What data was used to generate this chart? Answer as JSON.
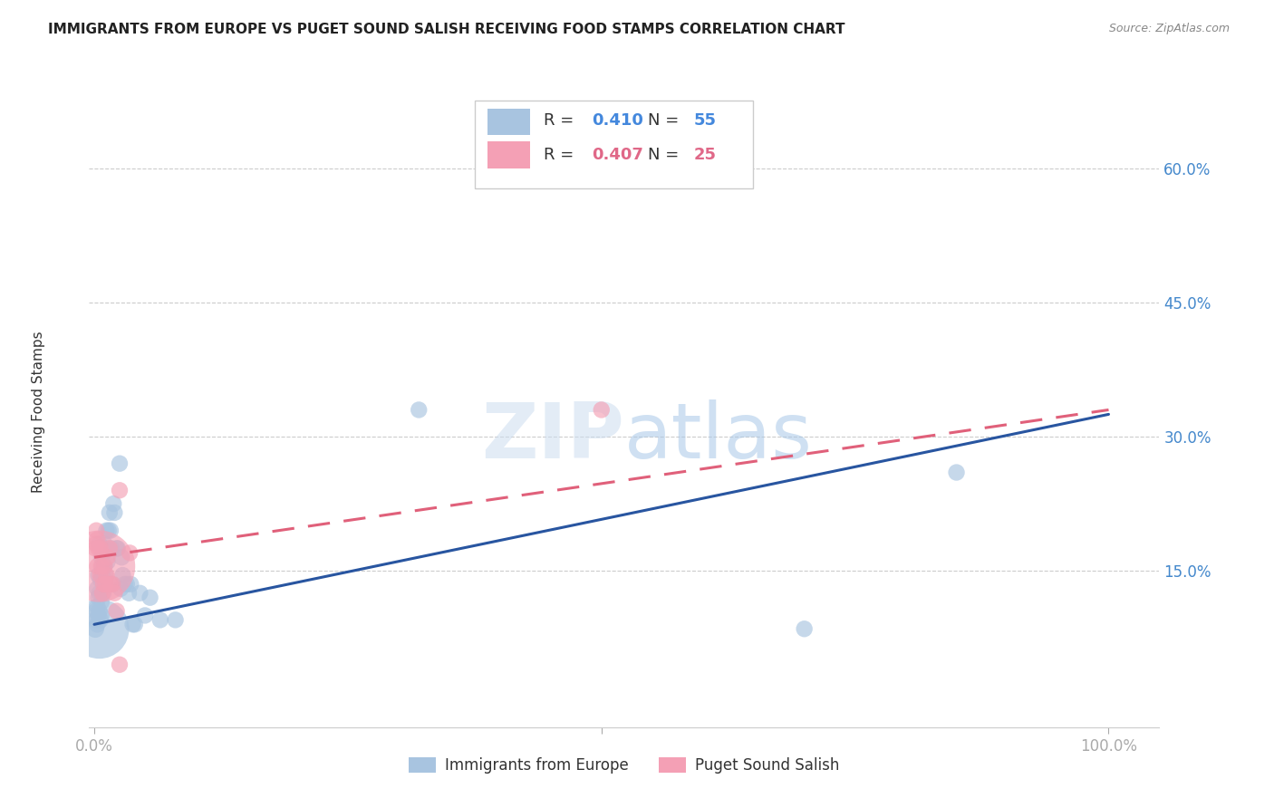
{
  "title": "IMMIGRANTS FROM EUROPE VS PUGET SOUND SALISH RECEIVING FOOD STAMPS CORRELATION CHART",
  "source": "Source: ZipAtlas.com",
  "ylabel": "Receiving Food Stamps",
  "ytick_labels": [
    "15.0%",
    "30.0%",
    "45.0%",
    "60.0%"
  ],
  "ytick_values": [
    0.15,
    0.3,
    0.45,
    0.6
  ],
  "xlim": [
    -0.005,
    1.05
  ],
  "ylim": [
    -0.025,
    0.68
  ],
  "blue_R": "0.410",
  "blue_N": "55",
  "pink_R": "0.407",
  "pink_N": "25",
  "blue_color": "#a8c4e0",
  "pink_color": "#f4a0b5",
  "blue_line_color": "#2855a0",
  "pink_line_color": "#e0607a",
  "legend_label_blue": "Immigrants from Europe",
  "legend_label_pink": "Puget Sound Salish",
  "blue_line_x0": 0.0,
  "blue_line_x1": 1.0,
  "blue_line_y0": 0.09,
  "blue_line_y1": 0.325,
  "pink_line_x0": 0.0,
  "pink_line_x1": 1.0,
  "pink_line_y0": 0.165,
  "pink_line_y1": 0.33,
  "blue_scatter_x": [
    0.001,
    0.002,
    0.002,
    0.003,
    0.003,
    0.003,
    0.004,
    0.004,
    0.004,
    0.005,
    0.005,
    0.005,
    0.005,
    0.006,
    0.006,
    0.007,
    0.007,
    0.007,
    0.008,
    0.008,
    0.009,
    0.009,
    0.01,
    0.01,
    0.011,
    0.011,
    0.012,
    0.013,
    0.014,
    0.015,
    0.016,
    0.017,
    0.018,
    0.019,
    0.02,
    0.022,
    0.023,
    0.025,
    0.026,
    0.027,
    0.028,
    0.03,
    0.032,
    0.034,
    0.036,
    0.038,
    0.04,
    0.045,
    0.05,
    0.055,
    0.065,
    0.08,
    0.32,
    0.7,
    0.85
  ],
  "blue_scatter_y": [
    0.085,
    0.095,
    0.105,
    0.09,
    0.11,
    0.13,
    0.1,
    0.12,
    0.145,
    0.085,
    0.105,
    0.125,
    0.18,
    0.095,
    0.14,
    0.1,
    0.115,
    0.165,
    0.145,
    0.155,
    0.125,
    0.17,
    0.155,
    0.18,
    0.145,
    0.175,
    0.195,
    0.16,
    0.195,
    0.215,
    0.195,
    0.175,
    0.135,
    0.225,
    0.215,
    0.175,
    0.175,
    0.27,
    0.13,
    0.165,
    0.145,
    0.135,
    0.135,
    0.125,
    0.135,
    0.09,
    0.09,
    0.125,
    0.1,
    0.12,
    0.095,
    0.095,
    0.33,
    0.085,
    0.26
  ],
  "blue_scatter_size": [
    40,
    35,
    35,
    35,
    35,
    35,
    35,
    35,
    35,
    450,
    35,
    35,
    35,
    35,
    35,
    35,
    35,
    35,
    35,
    35,
    35,
    35,
    35,
    35,
    35,
    35,
    35,
    35,
    35,
    35,
    35,
    35,
    35,
    35,
    35,
    35,
    35,
    35,
    35,
    35,
    35,
    35,
    35,
    35,
    35,
    35,
    35,
    35,
    35,
    35,
    35,
    35,
    35,
    35,
    35
  ],
  "pink_scatter_x": [
    0.001,
    0.002,
    0.002,
    0.003,
    0.003,
    0.004,
    0.005,
    0.006,
    0.006,
    0.007,
    0.008,
    0.009,
    0.01,
    0.011,
    0.012,
    0.013,
    0.015,
    0.016,
    0.018,
    0.02,
    0.022,
    0.025,
    0.035,
    0.5,
    0.025
  ],
  "pink_scatter_y": [
    0.175,
    0.195,
    0.18,
    0.155,
    0.185,
    0.175,
    0.155,
    0.145,
    0.175,
    0.155,
    0.125,
    0.135,
    0.155,
    0.135,
    0.145,
    0.165,
    0.175,
    0.135,
    0.135,
    0.125,
    0.105,
    0.24,
    0.17,
    0.33,
    0.045
  ],
  "pink_scatter_size": [
    35,
    35,
    35,
    35,
    35,
    35,
    650,
    35,
    35,
    35,
    35,
    35,
    35,
    35,
    35,
    35,
    35,
    35,
    35,
    35,
    35,
    35,
    35,
    35,
    35
  ]
}
